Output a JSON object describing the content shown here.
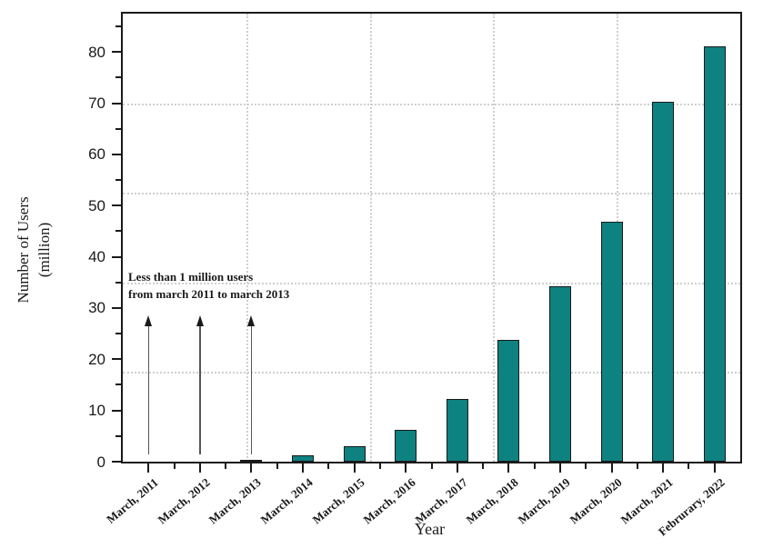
{
  "chart_data": {
    "type": "bar",
    "title": "",
    "xlabel": "Year",
    "ylabel": "Number of Users (million)",
    "ylabel_line1": "Number of Users",
    "ylabel_line2": "(million)",
    "categories": [
      "March, 2011",
      "March, 2012",
      "March, 2013",
      "March, 2014",
      "March, 2015",
      "March, 2016",
      "March, 2017",
      "March, 2018",
      "March, 2019",
      "March, 2020",
      "March, 2021",
      "Februrary, 2022"
    ],
    "values": [
      0.1,
      0.1,
      0.3,
      1.2,
      3.0,
      6.3,
      12.3,
      23.7,
      34.2,
      46.8,
      70.3,
      81.2
    ],
    "ylim": [
      0,
      87.5
    ],
    "y_major_tick_labels": [
      "0",
      "10",
      "20",
      "30",
      "40",
      "50",
      "60",
      "70",
      "80"
    ],
    "y_major_tick_values": [
      0,
      10,
      20,
      30,
      40,
      50,
      60,
      70,
      80
    ],
    "y_minor_tick_values": [
      5,
      15,
      25,
      35,
      45,
      55,
      65,
      75,
      85
    ],
    "grid": "dotted gray lines dividing plot into 5 equal parts on both axes",
    "legend": "none",
    "bar_color": "#0e8181",
    "bar_edge_color": "#1a1a1a",
    "grid_color": "#cfcfcf",
    "annotation": {
      "line1": "Less than 1 million users",
      "line2": "from march 2011 to march 2013",
      "arrow_categories": [
        "March, 2011",
        "March, 2012",
        "March, 2013"
      ],
      "arrow_tip_value": 28.6
    }
  }
}
